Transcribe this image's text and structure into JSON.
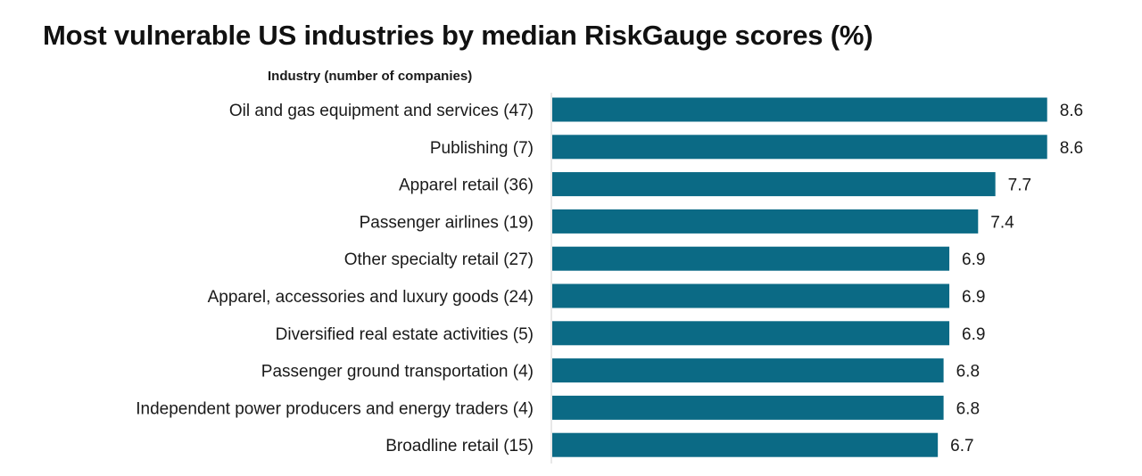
{
  "chart_data": {
    "type": "bar",
    "orientation": "horizontal",
    "title": "Most vulnerable US industries by median RiskGauge scores (%)",
    "category_axis_label": "Industry (number of companies)",
    "categories": [
      "Oil and gas equipment and services (47)",
      "Publishing (7)",
      "Apparel retail (36)",
      "Passenger airlines (19)",
      "Other specialty retail (27)",
      "Apparel, accessories and luxury goods (24)",
      "Diversified real estate activities (5)",
      "Passenger ground transportation (4)",
      "Independent power producers and energy traders (4)",
      "Broadline retail (15)"
    ],
    "values": [
      8.6,
      8.6,
      7.7,
      7.4,
      6.9,
      6.9,
      6.9,
      6.8,
      6.8,
      6.7
    ],
    "value_labels": [
      "8.6",
      "8.6",
      "7.7",
      "7.4",
      "6.9",
      "6.9",
      "6.9",
      "6.8",
      "6.8",
      "6.7"
    ],
    "bar_color": "#0b6a85",
    "grid": false,
    "legend": "none"
  }
}
